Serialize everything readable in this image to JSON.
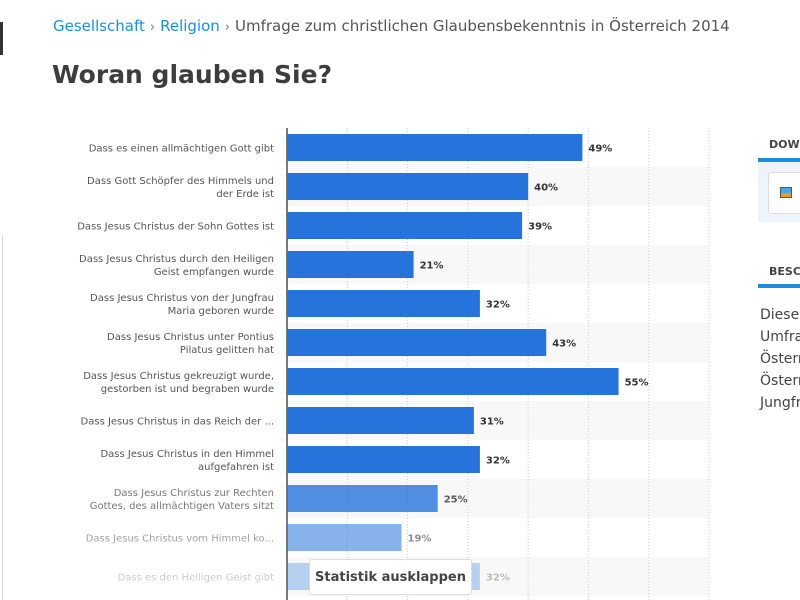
{
  "breadcrumb": {
    "items": [
      "Gesellschaft",
      "Religion"
    ],
    "current": "Umfrage zum christlichen Glaubensbekenntnis in Österreich 2014"
  },
  "page_title": "Woran glauben Sie?",
  "expand_button": "Statistik ausklappen",
  "sidebar": {
    "download_heading": "DOW",
    "download_icon": "image-icon",
    "description_heading": "BESC",
    "description_lines": [
      "Diese",
      "Umfra",
      "Östern",
      "Östern",
      "Jungfr"
    ]
  },
  "colors": {
    "bar": "#2673db",
    "link": "#1a8ee1"
  },
  "chart_data": {
    "type": "bar",
    "orientation": "horizontal",
    "xlim": [
      0,
      70
    ],
    "grid": true,
    "unit": "%",
    "categories": [
      "Dass es einen allmächtigen Gott gibt",
      "Dass Gott Schöpfer des Himmels und der Erde ist",
      "Dass Jesus Christus der Sohn Gottes ist",
      "Dass Jesus Christus durch den Heiligen Geist empfangen wurde",
      "Dass Jesus Christus von der Jungfrau Maria geboren wurde",
      "Dass Jesus Christus unter Pontius Pilatus gelitten hat",
      "Dass Jesus Christus gekreuzigt wurde, gestorben ist und begraben wurde",
      "Dass Jesus Christus in das Reich der ...",
      "Dass Jesus Christus in den Himmel aufgefahren ist",
      "Dass Jesus Christus zur Rechten Gottes, des allmächtigen Vaters sitzt",
      "Dass Jesus Christus vom Himmel ko...",
      "Dass es den Heiligen Geist gibt"
    ],
    "label_lines": [
      [
        "Dass es einen allmächtigen Gott gibt"
      ],
      [
        "Dass Gott Schöpfer des Himmels und",
        "der Erde ist"
      ],
      [
        "Dass Jesus Christus der Sohn Gottes ist"
      ],
      [
        "Dass Jesus Christus durch den Heiligen",
        "Geist empfangen wurde"
      ],
      [
        "Dass Jesus Christus von der Jungfrau",
        "Maria geboren wurde"
      ],
      [
        "Dass Jesus Christus unter Pontius",
        "Pilatus gelitten hat"
      ],
      [
        "Dass Jesus Christus gekreuzigt wurde,",
        "gestorben ist und begraben wurde"
      ],
      [
        "Dass Jesus Christus in das Reich der ..."
      ],
      [
        "Dass Jesus Christus in den Himmel",
        "aufgefahren ist"
      ],
      [
        "Dass Jesus Christus zur Rechten",
        "Gottes, des allmächtigen Vaters sitzt"
      ],
      [
        "Dass Jesus Christus vom Himmel ko..."
      ],
      [
        "Dass es den Heiligen Geist gibt"
      ]
    ],
    "values": [
      49,
      40,
      39,
      21,
      32,
      43,
      55,
      31,
      32,
      25,
      19,
      32
    ],
    "data_labels": [
      "49%",
      "40%",
      "39%",
      "21%",
      "32%",
      "43%",
      "55%",
      "31%",
      "32%",
      "25%",
      "19%",
      "32%"
    ]
  }
}
